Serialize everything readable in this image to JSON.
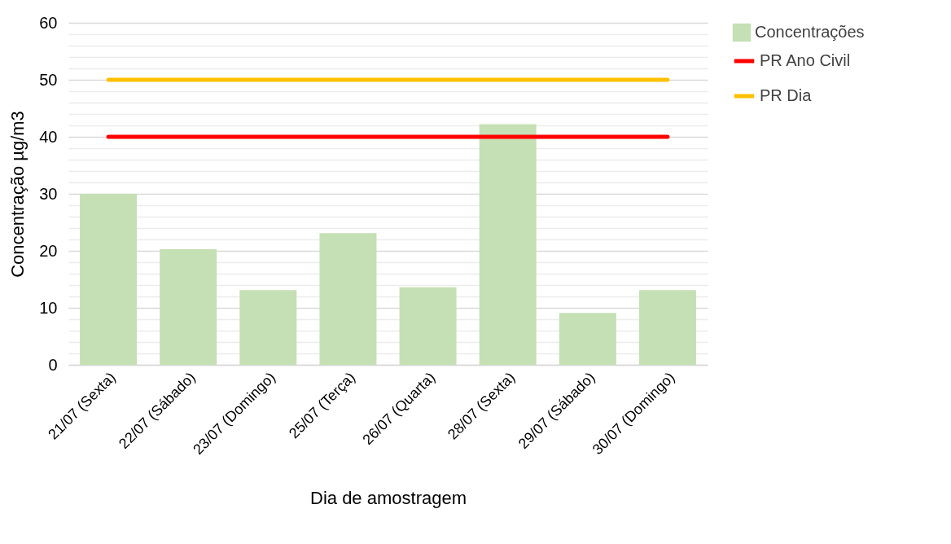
{
  "chart_data": {
    "type": "bar",
    "xlabel": "Dia de amostragem",
    "ylabel": "Concentração µg/m3",
    "categories": [
      "21/07 (Sexta)",
      "22/07 (Sábado)",
      "23/07 (Domingo)",
      "25/07 (Terça)",
      "26/07 (Quarta)",
      "28/07 (Sexta)",
      "29/07 (Sábado)",
      "30/07 (Domingo)"
    ],
    "series": [
      {
        "name": "Concentrações",
        "color": "#c5e0b4",
        "values": [
          30.0,
          20.3,
          13.1,
          23.1,
          13.6,
          42.2,
          9.1,
          13.1
        ]
      },
      {
        "name": "PR Ano Civil",
        "type": "line",
        "color": "#ff0000",
        "values": [
          40,
          40,
          40,
          40,
          40,
          40,
          40,
          40
        ]
      },
      {
        "name": "PR Dia",
        "type": "line",
        "color": "#ffc000",
        "values": [
          50,
          50,
          50,
          50,
          50,
          50,
          50,
          50
        ]
      }
    ],
    "ylim": [
      0,
      60
    ],
    "yticks": [
      0,
      {
        "value": 2,
        "label": null
      },
      {
        "value": 4,
        "label": null
      },
      {
        "value": 6,
        "label": null
      },
      {
        "value": 8,
        "label": null
      },
      10,
      {
        "value": 12,
        "label": null
      },
      {
        "value": 14,
        "label": null
      },
      {
        "value": 16,
        "label": null
      },
      {
        "value": 18,
        "label": null
      },
      20,
      {
        "value": 22,
        "label": null
      },
      {
        "value": 24,
        "label": null
      },
      {
        "value": 26,
        "label": null
      },
      {
        "value": 28,
        "label": null
      },
      30,
      {
        "value": 32,
        "label": null
      },
      {
        "value": 34,
        "label": null
      },
      {
        "value": 36,
        "label": null
      },
      {
        "value": 38,
        "label": null
      },
      40,
      {
        "value": 42,
        "label": null
      },
      {
        "value": 44,
        "label": null
      },
      {
        "value": 46,
        "label": null
      },
      {
        "value": 48,
        "label": null
      },
      50,
      {
        "value": 52,
        "label": null
      },
      {
        "value": 54,
        "label": null
      },
      {
        "value": 56,
        "label": null
      },
      {
        "value": 58,
        "label": null
      },
      60
    ],
    "grid": "y",
    "legend": "right",
    "marker": "none",
    "line_style": "solid"
  }
}
